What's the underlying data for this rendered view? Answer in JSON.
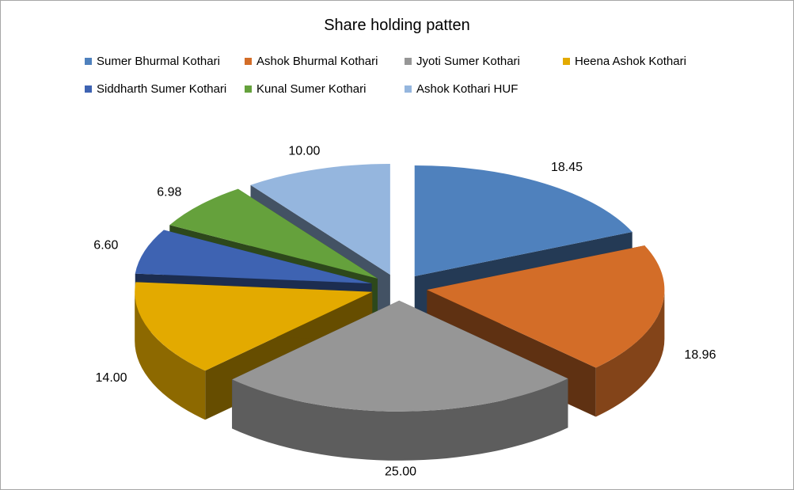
{
  "chart_data": {
    "type": "pie",
    "title": "Share holding patten",
    "exploded": true,
    "three_d": true,
    "legend_position": "top",
    "series": [
      {
        "name": "Sumer Bhurmal Kothari",
        "value": 18.45,
        "label": "18.45",
        "color": "#4f81bd"
      },
      {
        "name": "Ashok Bhurmal Kothari",
        "value": 18.96,
        "label": "18.96",
        "color": "#d36d28"
      },
      {
        "name": "Jyoti Sumer Kothari",
        "value": 25.0,
        "label": "25.00",
        "color": "#969696"
      },
      {
        "name": "Heena Ashok Kothari",
        "value": 14.0,
        "label": "14.00",
        "color": "#e3aa00"
      },
      {
        "name": "Siddharth Sumer Kothari",
        "value": 6.6,
        "label": "6.60",
        "color": "#3e63b2"
      },
      {
        "name": "Kunal Sumer Kothari",
        "value": 6.98,
        "label": "6.98",
        "color": "#65a13c"
      },
      {
        "name": "Ashok Kothari HUF",
        "value": 10.0,
        "label": "10.00",
        "color": "#95b6de"
      }
    ]
  }
}
